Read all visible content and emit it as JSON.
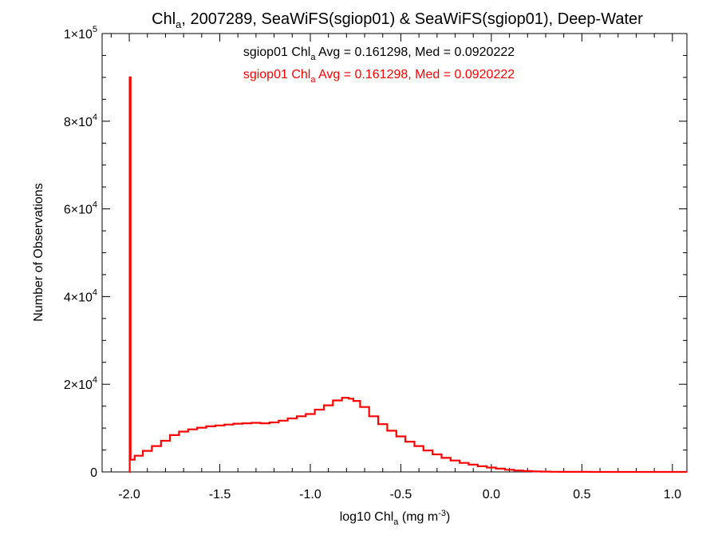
{
  "chart_data": {
    "type": "histogram",
    "title": {
      "base": "Chl",
      "sub": "a",
      "rest": ", 2007289, SeaWiFS(sgiop01) & SeaWiFS(sgiop01), Deep-Water"
    },
    "xlabel": {
      "base": "log10 Chl",
      "sub": "a",
      "rest": " (mg m",
      "sup": "-3",
      "end": ")"
    },
    "ylabel": "Number of Observations",
    "xlim": [
      -2.15,
      1.08
    ],
    "ylim": [
      0,
      100000
    ],
    "x_ticks": [
      {
        "value": -2.0,
        "label": "-2.0"
      },
      {
        "value": -1.5,
        "label": "-1.5"
      },
      {
        "value": -1.0,
        "label": "-1.0"
      },
      {
        "value": -0.5,
        "label": "-0.5"
      },
      {
        "value": 0.0,
        "label": "0.0"
      },
      {
        "value": 0.5,
        "label": "0.5"
      },
      {
        "value": 1.0,
        "label": "1.0"
      }
    ],
    "y_ticks": [
      {
        "value": 0,
        "mant": "0",
        "exp": ""
      },
      {
        "value": 20000,
        "mant": "2×10",
        "exp": "4"
      },
      {
        "value": 40000,
        "mant": "4×10",
        "exp": "4"
      },
      {
        "value": 60000,
        "mant": "6×10",
        "exp": "4"
      },
      {
        "value": 80000,
        "mant": "8×10",
        "exp": "4"
      },
      {
        "value": 100000,
        "mant": "1×10",
        "exp": "5"
      }
    ],
    "legend": [
      {
        "prefix": "sgiop01 Chl",
        "sub": "a",
        "suffix": " Avg = 0.161298, Med = 0.0920222",
        "color": "#000000"
      },
      {
        "prefix": "sgiop01 Chl",
        "sub": "a",
        "suffix": " Avg = 0.161298, Med = 0.0920222",
        "color": "#ff0000"
      }
    ],
    "series": [
      {
        "color": "#ff0000",
        "points": [
          [
            -2.0,
            0
          ],
          [
            -1.995,
            90000
          ],
          [
            -1.99,
            2800
          ],
          [
            -1.95,
            3700
          ],
          [
            -1.9,
            4800
          ],
          [
            -1.85,
            5900
          ],
          [
            -1.8,
            7100
          ],
          [
            -1.75,
            8400
          ],
          [
            -1.7,
            9200
          ],
          [
            -1.65,
            9700
          ],
          [
            -1.6,
            10100
          ],
          [
            -1.55,
            10400
          ],
          [
            -1.5,
            10600
          ],
          [
            -1.45,
            10800
          ],
          [
            -1.4,
            11000
          ],
          [
            -1.35,
            11100
          ],
          [
            -1.3,
            11200
          ],
          [
            -1.25,
            11100
          ],
          [
            -1.2,
            11300
          ],
          [
            -1.15,
            11700
          ],
          [
            -1.1,
            12200
          ],
          [
            -1.05,
            12700
          ],
          [
            -1.0,
            13200
          ],
          [
            -0.95,
            14200
          ],
          [
            -0.9,
            15200
          ],
          [
            -0.85,
            16300
          ],
          [
            -0.8,
            16900
          ],
          [
            -0.775,
            16700
          ],
          [
            -0.75,
            16200
          ],
          [
            -0.7,
            14800
          ],
          [
            -0.65,
            12700
          ],
          [
            -0.6,
            10900
          ],
          [
            -0.55,
            9400
          ],
          [
            -0.5,
            8100
          ],
          [
            -0.45,
            6900
          ],
          [
            -0.4,
            5900
          ],
          [
            -0.35,
            4900
          ],
          [
            -0.3,
            4000
          ],
          [
            -0.25,
            3200
          ],
          [
            -0.2,
            2600
          ],
          [
            -0.15,
            2050
          ],
          [
            -0.1,
            1650
          ],
          [
            -0.05,
            1300
          ],
          [
            0.0,
            1000
          ],
          [
            0.05,
            750
          ],
          [
            0.1,
            500
          ],
          [
            0.15,
            320
          ],
          [
            0.2,
            200
          ],
          [
            0.25,
            120
          ],
          [
            0.3,
            70
          ],
          [
            0.35,
            40
          ],
          [
            0.4,
            25
          ],
          [
            0.5,
            10
          ],
          [
            0.6,
            5
          ],
          [
            0.8,
            2
          ],
          [
            1.08,
            0
          ]
        ]
      }
    ]
  }
}
